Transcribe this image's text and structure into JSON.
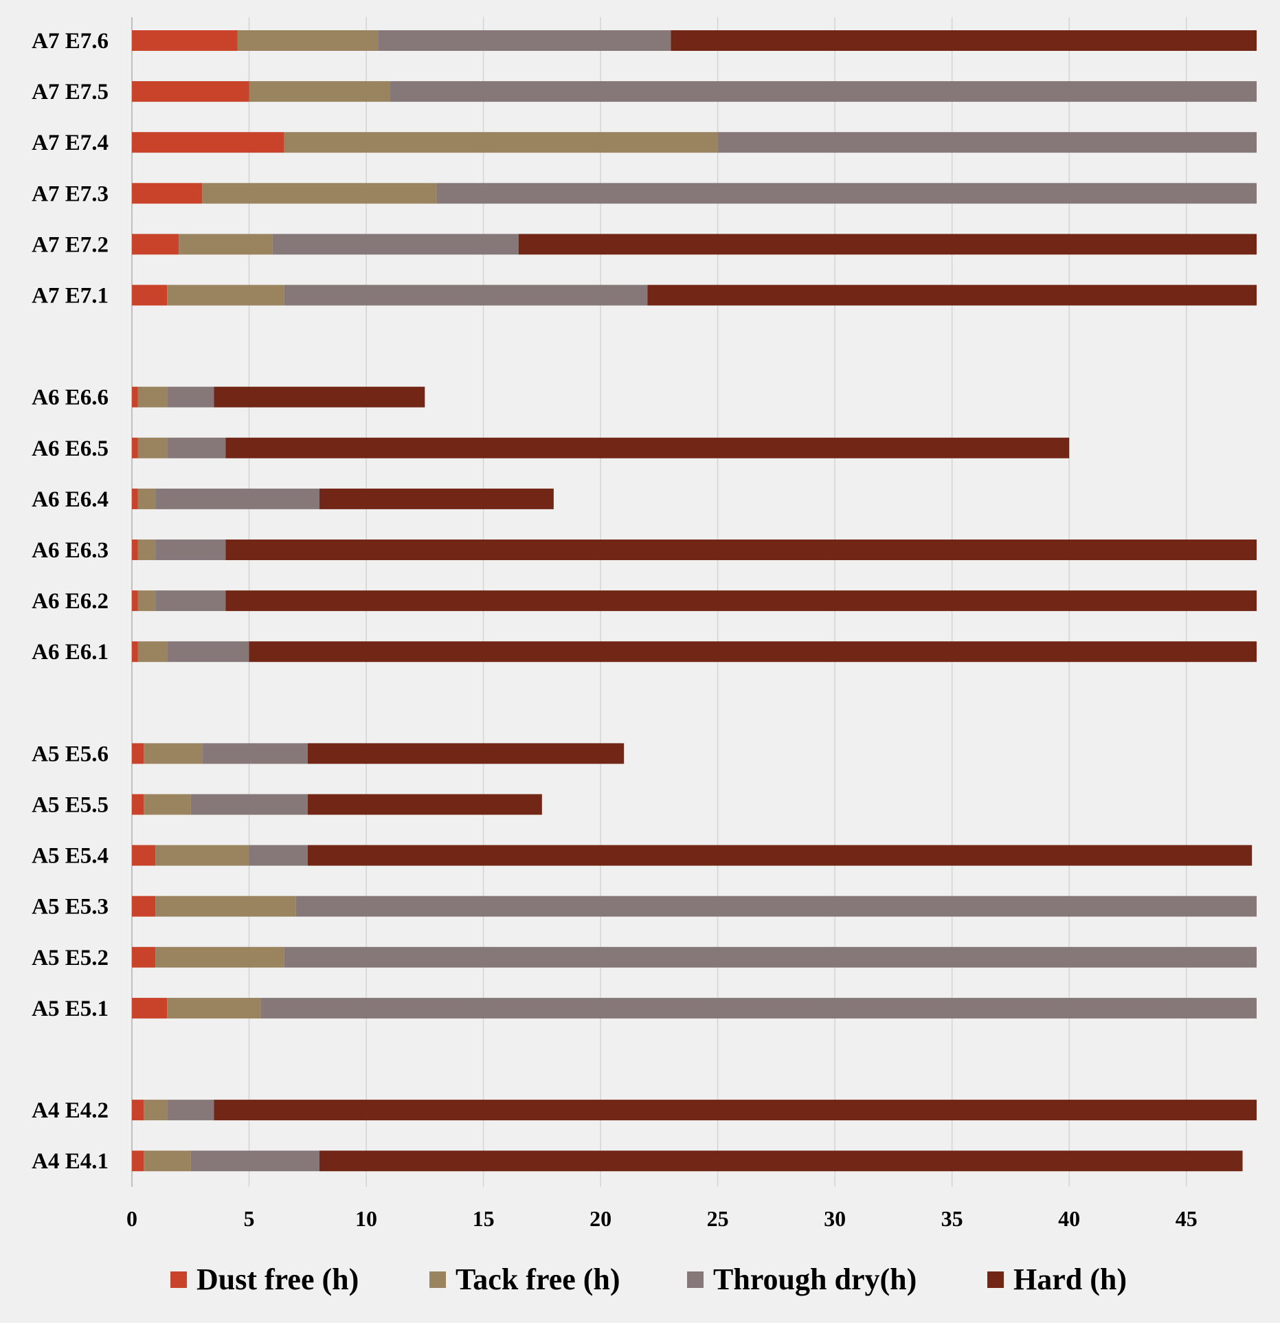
{
  "chart_data": {
    "type": "bar",
    "orientation": "horizontal",
    "stacked": true,
    "title": "",
    "xlabel": "",
    "ylabel": "",
    "xlim": [
      0,
      48
    ],
    "xticks": [
      0,
      5,
      10,
      15,
      20,
      25,
      30,
      35,
      40,
      45
    ],
    "grid": "vertical",
    "legend_position": "bottom",
    "categories_top_to_bottom": [
      "A7 E7.6",
      "A7 E7.5",
      "A7 E7.4",
      "A7 E7.3",
      "A7 E7.2",
      "A7 E7.1",
      "",
      "A6 E6.6",
      "A6 E6.5",
      "A6 E6.4",
      "A6 E6.3",
      "A6 E6.2",
      "A6 E6.1",
      "",
      "A5 E5.6",
      "A5 E5.5",
      "A5 E5.4",
      "A5 E5.3",
      "A5 E5.2",
      "A5 E5.1",
      "",
      "A4 E4.2",
      "A4 E4.1"
    ],
    "series": [
      {
        "name": "Dust free (h)",
        "color": "#C9432A",
        "values": [
          4.5,
          5,
          6.5,
          3,
          2,
          1.5,
          null,
          0.25,
          0.25,
          0.25,
          0.25,
          0.25,
          0.25,
          null,
          0.5,
          0.5,
          1,
          1,
          1,
          1.5,
          null,
          0.5,
          0.5
        ]
      },
      {
        "name": "Tack free (h)",
        "color": "#9A845F",
        "values": [
          6,
          6,
          18.5,
          10,
          4,
          5,
          null,
          1.25,
          1.25,
          0.75,
          0.75,
          0.75,
          1.25,
          null,
          2.5,
          2,
          4,
          6,
          5.5,
          4,
          null,
          1,
          2
        ]
      },
      {
        "name": "Through dry(h)",
        "color": "#867879",
        "values": [
          12.5,
          37,
          23,
          35,
          10.5,
          15.5,
          null,
          2,
          2.5,
          7,
          3,
          3,
          3.5,
          null,
          4.5,
          5,
          2.5,
          41,
          41.5,
          42.5,
          null,
          2,
          5.5
        ]
      },
      {
        "name": "Hard (h)",
        "color": "#722716",
        "values": [
          25,
          0,
          0,
          0,
          31.5,
          26,
          null,
          9,
          36,
          10,
          44,
          44,
          43,
          null,
          13.5,
          10,
          40.3,
          0,
          0,
          0,
          null,
          44.5,
          39.4
        ]
      }
    ]
  }
}
